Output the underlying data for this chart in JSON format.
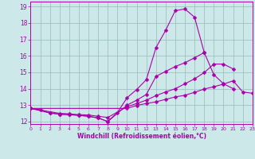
{
  "xlabel": "Windchill (Refroidissement éolien,°C)",
  "line1_x": [
    0,
    1,
    2,
    3,
    4,
    5,
    6,
    7,
    8,
    9,
    10,
    11,
    12,
    13,
    14,
    15,
    16,
    17,
    18
  ],
  "line1_y": [
    12.8,
    12.72,
    12.52,
    12.45,
    12.42,
    12.38,
    12.32,
    12.22,
    12.0,
    12.55,
    13.45,
    13.95,
    14.55,
    16.5,
    17.55,
    18.75,
    18.85,
    18.35,
    16.2
  ],
  "line2_x": [
    0,
    2,
    3,
    4,
    5,
    6,
    7,
    8,
    10,
    11,
    12,
    13,
    14,
    15,
    16,
    17,
    18,
    19,
    20,
    21
  ],
  "line2_y": [
    12.8,
    12.52,
    12.45,
    12.42,
    12.38,
    12.32,
    12.22,
    12.0,
    13.0,
    13.3,
    13.65,
    14.75,
    15.05,
    15.35,
    15.58,
    15.88,
    16.2,
    14.85,
    14.3,
    14.0
  ],
  "line3_x": [
    0,
    3,
    4,
    5,
    6,
    7,
    8,
    10,
    11,
    12,
    13,
    14,
    15,
    16,
    17,
    18,
    19,
    20,
    21
  ],
  "line3_y": [
    12.8,
    12.5,
    12.47,
    12.42,
    12.4,
    12.32,
    12.25,
    12.9,
    13.1,
    13.3,
    13.58,
    13.8,
    14.0,
    14.3,
    14.6,
    14.98,
    15.5,
    15.5,
    15.2
  ],
  "line4_x": [
    0,
    10,
    11,
    12,
    13,
    14,
    15,
    16,
    17,
    18,
    19,
    20,
    21,
    22,
    23
  ],
  "line4_y": [
    12.8,
    12.8,
    12.98,
    13.1,
    13.2,
    13.35,
    13.5,
    13.6,
    13.78,
    13.98,
    14.12,
    14.28,
    14.48,
    13.8,
    13.72
  ],
  "line_color": "#aa00aa",
  "marker": "D",
  "marker_size": 2.5,
  "bg_color": "#cce8e8",
  "grid_color": "#99bbbb",
  "xlim": [
    0,
    23
  ],
  "ylim": [
    11.85,
    19.3
  ],
  "yticks": [
    12,
    13,
    14,
    15,
    16,
    17,
    18,
    19
  ],
  "xticks": [
    0,
    1,
    2,
    3,
    4,
    5,
    6,
    7,
    8,
    9,
    10,
    11,
    12,
    13,
    14,
    15,
    16,
    17,
    18,
    19,
    20,
    21,
    22,
    23
  ]
}
